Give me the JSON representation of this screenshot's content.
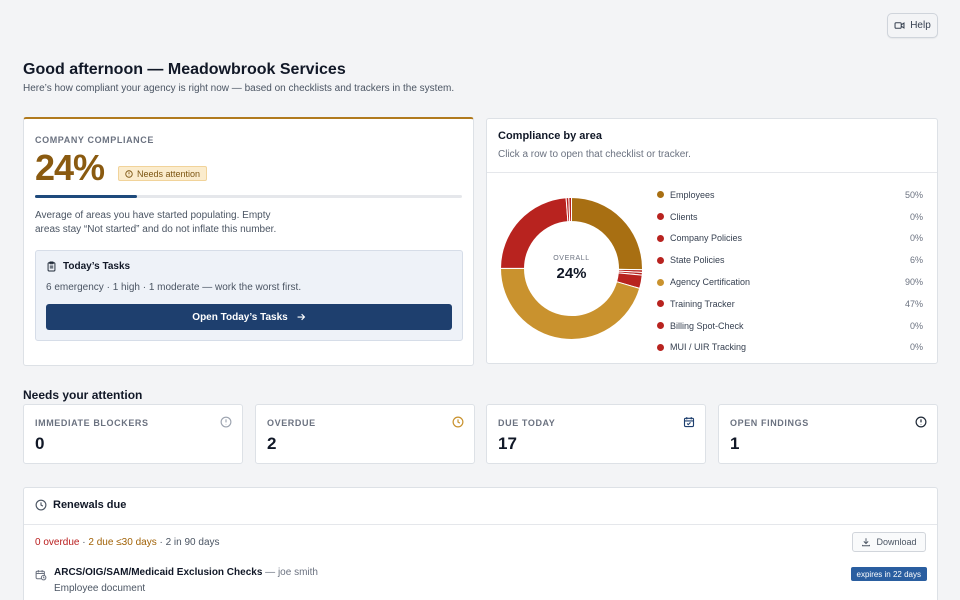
{
  "header": {
    "help_label": "Help",
    "title": "Good afternoon — Meadowbrook Services",
    "subtitle": "Here’s how compliant your agency is right now — based on checklists and trackers in the system."
  },
  "company_compliance": {
    "eyebrow": "COMPANY COMPLIANCE",
    "percent_label": "24%",
    "percent_value": 24,
    "status_badge": "Needs attention",
    "note": "Average of areas you have started populating. Empty areas stay “Not started” and do not inflate this number.",
    "accent_color": "#b07a1e"
  },
  "todays_tasks": {
    "title": "Today’s Tasks",
    "summary": "6 emergency · 1 high · 1 moderate — work the worst first.",
    "button_label": "Open Today’s Tasks"
  },
  "compliance_by_area": {
    "title": "Compliance by area",
    "subtitle": "Click a row to open that checklist or tracker.",
    "overall_label": "OVERALL",
    "overall_value": "24%",
    "colors": {
      "gold": "#c9922e",
      "brown": "#a86f12",
      "red": "#b8231f"
    },
    "items": [
      {
        "name": "Employees",
        "pct": "50%",
        "color": "#a86f12"
      },
      {
        "name": "Clients",
        "pct": "0%",
        "color": "#b8231f"
      },
      {
        "name": "Company Policies",
        "pct": "0%",
        "color": "#b8231f"
      },
      {
        "name": "State Policies",
        "pct": "6%",
        "color": "#b8231f"
      },
      {
        "name": "Agency Certification",
        "pct": "90%",
        "color": "#c9922e"
      },
      {
        "name": "Training Tracker",
        "pct": "47%",
        "color": "#b8231f"
      },
      {
        "name": "Billing Spot-Check",
        "pct": "0%",
        "color": "#b8231f"
      },
      {
        "name": "MUI / UIR Tracking",
        "pct": "0%",
        "color": "#b8231f"
      }
    ]
  },
  "attention": {
    "title": "Needs your attention",
    "stats": [
      {
        "label": "IMMEDIATE BLOCKERS",
        "value": "0",
        "icon": "alert-circle-icon",
        "color": "#9ca3af"
      },
      {
        "label": "OVERDUE",
        "value": "2",
        "icon": "clock-icon",
        "color": "#c9922e"
      },
      {
        "label": "DUE TODAY",
        "value": "17",
        "icon": "calendar-icon",
        "color": "#1e3f6e"
      },
      {
        "label": "OPEN FINDINGS",
        "value": "1",
        "icon": "info-circle-icon",
        "color": "#1f2937"
      }
    ]
  },
  "renewals": {
    "title": "Renewals due",
    "summary_overdue": "0 overdue",
    "summary_sep": " · ",
    "summary_due": "2 due ≤30 days",
    "summary_90": "2 in 90 days",
    "download_label": "Download",
    "items": [
      {
        "name": "ARCS/OIG/SAM/Medicaid Exclusion Checks",
        "owner": " — joe smith",
        "type": "Employee document",
        "expires": "expires in 22 days"
      }
    ]
  }
}
